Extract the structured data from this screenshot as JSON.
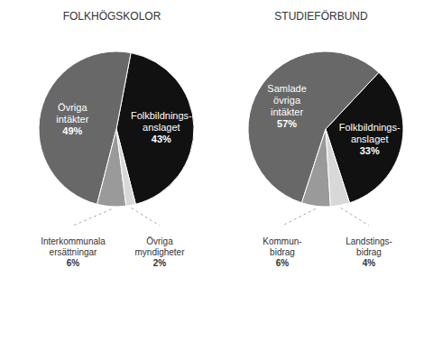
{
  "chart_data": [
    {
      "type": "pie",
      "title": "FOLKHÖGSKOLOR",
      "categories": [
        "Folkbildnings-\nanslaget",
        "Övriga\nintäkter",
        "Interkommunala\nersättningar",
        "Övriga\nmyndigheter"
      ],
      "values": [
        43,
        49,
        6,
        2
      ],
      "value_labels": [
        "43%",
        "49%",
        null,
        null
      ],
      "colors": [
        "#111111",
        "#686868",
        "#9a9a9a",
        "#d8d8d8"
      ],
      "data_labels": true,
      "annotations": [
        {
          "text": "Interkommunala\nersättningar\n6%",
          "category": "Interkommunala\nersättningar"
        },
        {
          "text": "Övriga\nmyndigheter\n2%",
          "category": "Övriga\nmyndigheter"
        }
      ]
    },
    {
      "type": "pie",
      "title": "STUDIEFÖRBUND",
      "categories": [
        "Folkbildnings-\nanslaget",
        "Samlade\növriga\nintäkter",
        "Kommun-\nbidrag",
        "Landstings-\nbidrag"
      ],
      "values": [
        33,
        57,
        6,
        4
      ],
      "value_labels": [
        "33%",
        "57%",
        null,
        null
      ],
      "colors": [
        "#111111",
        "#686868",
        "#9a9a9a",
        "#d8d8d8"
      ],
      "data_labels": true,
      "annotations": [
        {
          "text": "Kommun-\nbidrag\n6%",
          "category": "Kommun-\nbidrag"
        },
        {
          "text": "Landstings-\nbidrag\n4%",
          "category": "Landstings-\nbidrag"
        }
      ]
    }
  ]
}
